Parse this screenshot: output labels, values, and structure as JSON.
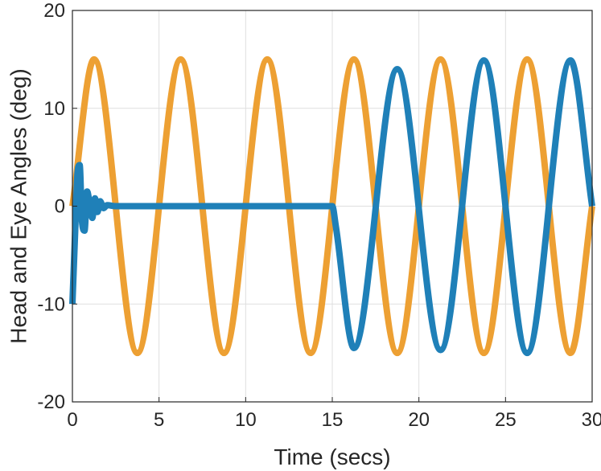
{
  "chart_data": {
    "type": "line",
    "title": "",
    "xlabel": "Time (secs)",
    "ylabel": "Head and Eye Angles (deg)",
    "xlim": [
      0,
      30
    ],
    "ylim": [
      -20,
      20
    ],
    "xticks": [
      0,
      5,
      10,
      15,
      20,
      25,
      30
    ],
    "yticks": [
      -20,
      -10,
      0,
      10,
      20
    ],
    "xtick_labels": [
      "0",
      "5",
      "10",
      "15",
      "20",
      "25",
      "30"
    ],
    "ytick_labels": [
      "-20",
      "-10",
      "0",
      "10",
      "20"
    ],
    "grid": true,
    "legend": "none",
    "series": [
      {
        "color": "#EDA033",
        "x": [
          0,
          1.25,
          3.75,
          6.25,
          8.75,
          11.25,
          13.75,
          16.25,
          18.75,
          21.25,
          23.75,
          26.25,
          28.75,
          30
        ],
        "y": [
          0,
          15,
          -15,
          15,
          -15,
          15,
          -15,
          15,
          -15,
          15,
          -15,
          15,
          -15,
          0
        ]
      },
      {
        "color": "#1F80B8",
        "x": [
          0,
          0.15,
          0.3,
          0.42,
          0.55,
          0.7,
          0.85,
          1.0,
          1.15,
          1.3,
          1.45,
          1.6,
          1.8,
          2.0,
          2.5,
          5,
          10,
          14.9,
          15.0,
          15.2,
          16.25,
          18.75,
          21.25,
          23.75,
          26.25,
          28.75,
          30
        ],
        "y": [
          -10,
          -3,
          3.5,
          4.2,
          -1.5,
          -2.5,
          1.5,
          0.2,
          -1.2,
          0.8,
          -0.6,
          0.5,
          -0.2,
          0.1,
          0,
          0,
          0,
          0,
          0,
          -2,
          -14.5,
          14,
          -14.7,
          14.9,
          -15,
          14.9,
          0
        ]
      }
    ]
  }
}
